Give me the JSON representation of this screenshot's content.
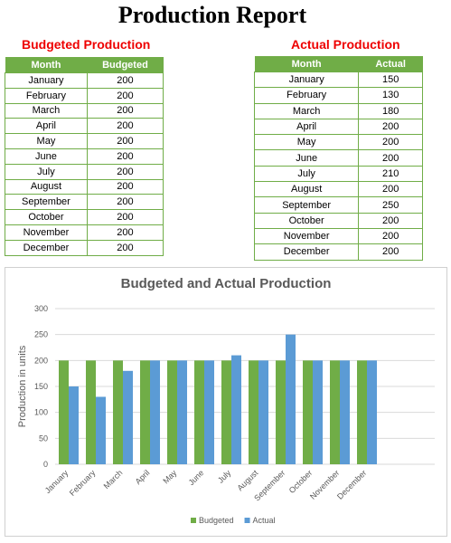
{
  "header": {
    "title": "Production Report"
  },
  "budget_table": {
    "title": "Budgeted Production",
    "headers": [
      "Month",
      "Budgeted"
    ],
    "rows": [
      [
        "January",
        200
      ],
      [
        "February",
        200
      ],
      [
        "March",
        200
      ],
      [
        "April",
        200
      ],
      [
        "May",
        200
      ],
      [
        "June",
        200
      ],
      [
        "July",
        200
      ],
      [
        "August",
        200
      ],
      [
        "September",
        200
      ],
      [
        "October",
        200
      ],
      [
        "November",
        200
      ],
      [
        "December",
        200
      ]
    ]
  },
  "actual_table": {
    "title": "Actual Production",
    "headers": [
      "Month",
      "Actual"
    ],
    "rows": [
      [
        "January",
        150
      ],
      [
        "February",
        130
      ],
      [
        "March",
        180
      ],
      [
        "April",
        200
      ],
      [
        "May",
        200
      ],
      [
        "June",
        200
      ],
      [
        "July",
        210
      ],
      [
        "August",
        200
      ],
      [
        "September",
        250
      ],
      [
        "October",
        200
      ],
      [
        "November",
        200
      ],
      [
        "December",
        200
      ]
    ]
  },
  "chart_data": {
    "type": "bar",
    "title": "Budgeted and Actual Production",
    "ylabel": "Production in units",
    "categories": [
      "January",
      "February",
      "March",
      "April",
      "May",
      "June",
      "July",
      "August",
      "September",
      "October",
      "November",
      "December"
    ],
    "series": [
      {
        "name": "Budgeted",
        "color": "#70ad47",
        "values": [
          200,
          200,
          200,
          200,
          200,
          200,
          200,
          200,
          200,
          200,
          200,
          200
        ]
      },
      {
        "name": "Actual",
        "color": "#5b9bd5",
        "values": [
          150,
          130,
          180,
          200,
          200,
          200,
          210,
          200,
          250,
          200,
          200,
          200
        ]
      }
    ],
    "ylim": [
      0,
      300
    ],
    "yticks": [
      0,
      50,
      100,
      150,
      200,
      250,
      300
    ],
    "grid": true,
    "legend": "bottom"
  }
}
